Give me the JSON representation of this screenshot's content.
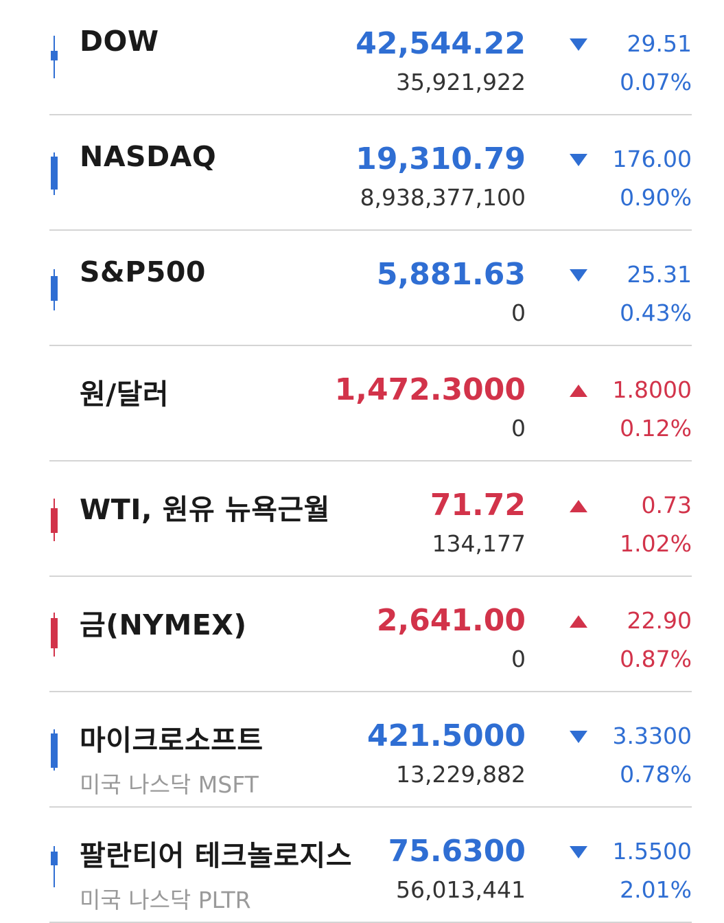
{
  "colors": {
    "up": "#d2334a",
    "down": "#2f6ed3",
    "divider": "#d4d4d4"
  },
  "rows": [
    {
      "name": "DOW",
      "sub": "",
      "price": "42,544.22",
      "volume": "35,921,922",
      "change": "29.51",
      "percent": "0.07%",
      "direction": "down",
      "candle": true,
      "icon": "down-triangle-icon"
    },
    {
      "name": "NASDAQ",
      "sub": "",
      "price": "19,310.79",
      "volume": "8,938,377,100",
      "change": "176.00",
      "percent": "0.90%",
      "direction": "down",
      "candle": true,
      "icon": "down-triangle-icon"
    },
    {
      "name": "S&P500",
      "sub": "",
      "price": "5,881.63",
      "volume": "0",
      "change": "25.31",
      "percent": "0.43%",
      "direction": "down",
      "candle": true,
      "icon": "down-triangle-icon"
    },
    {
      "name": "원/달러",
      "sub": "",
      "price": "1,472.3000",
      "volume": "0",
      "change": "1.8000",
      "percent": "0.12%",
      "direction": "up",
      "candle": false,
      "icon": "up-triangle-icon"
    },
    {
      "name": "WTI, 원유 뉴욕근월",
      "sub": "",
      "price": "71.72",
      "volume": "134,177",
      "change": "0.73",
      "percent": "1.02%",
      "direction": "up",
      "candle": true,
      "icon": "up-triangle-icon"
    },
    {
      "name": "금(NYMEX)",
      "sub": "",
      "price": "2,641.00",
      "volume": "0",
      "change": "22.90",
      "percent": "0.87%",
      "direction": "up",
      "candle": true,
      "icon": "up-triangle-icon"
    },
    {
      "name": "마이크로소프트",
      "sub": "미국 나스닥 MSFT",
      "price": "421.5000",
      "volume": "13,229,882",
      "change": "3.3300",
      "percent": "0.78%",
      "direction": "down",
      "candle": true,
      "icon": "down-triangle-icon"
    },
    {
      "name": "팔란티어 테크놀로지스",
      "sub": "미국 나스닥 PLTR",
      "price": "75.6300",
      "volume": "56,013,441",
      "change": "1.5500",
      "percent": "2.01%",
      "direction": "down",
      "candle": true,
      "icon": "down-triangle-icon"
    }
  ]
}
